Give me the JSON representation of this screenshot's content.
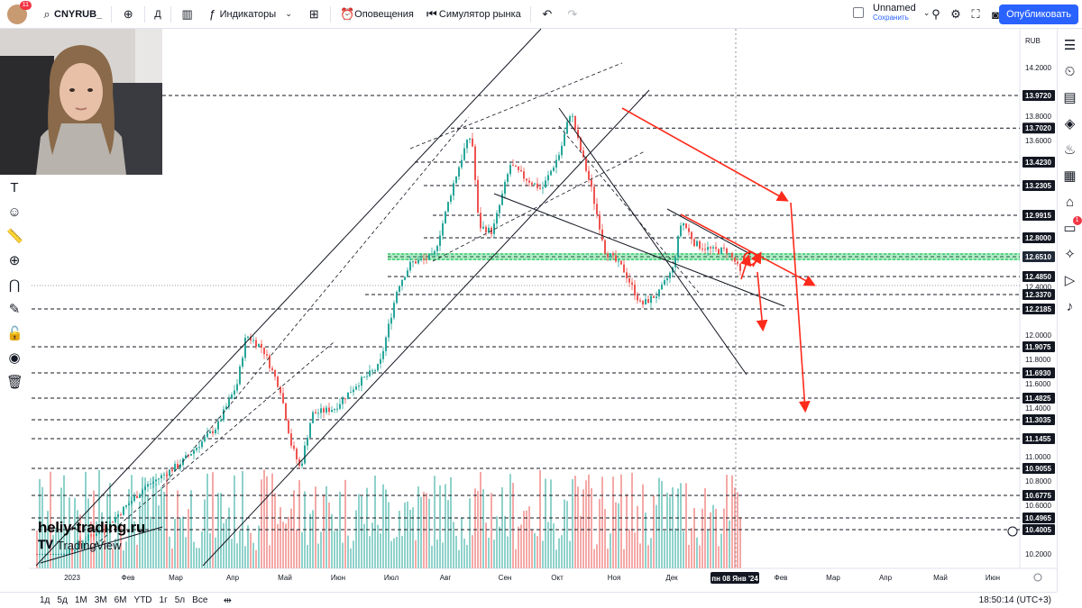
{
  "toolbar": {
    "symbol": "CNYRUB_",
    "interval": "Д",
    "indicators": "Индикаторы",
    "alerts": "Оповещения",
    "simulator": "Симулятор рынка",
    "save_title": "Unnamed",
    "save_status": "Сохранить",
    "publish": "Опубликовать",
    "avatar_badge": "11"
  },
  "price_axis": {
    "currency": "RUB",
    "ticks": [
      "14.2000",
      "13.8000",
      "13.6000",
      "12.4000",
      "12.0000",
      "11.8000",
      "11.6000",
      "11.4000",
      "11.0000",
      "10.8000",
      "10.6000",
      "10.2000"
    ],
    "tick_values": [
      14.2,
      13.8,
      13.6,
      12.4,
      12.0,
      11.8,
      11.6,
      11.4,
      11.0,
      10.8,
      10.6,
      10.2
    ],
    "level_tags": [
      "13.9720",
      "13.7020",
      "13.4230",
      "13.2305",
      "12.9915",
      "12.8000",
      "12.6510",
      "12.4850",
      "12.3370",
      "12.2185",
      "11.9075",
      "11.6930",
      "11.4825",
      "11.3035",
      "11.1455",
      "10.9055",
      "10.6775",
      "10.4965",
      "10.4005"
    ],
    "level_values": [
      13.972,
      13.702,
      13.423,
      13.2305,
      12.9915,
      12.8,
      12.651,
      12.485,
      12.337,
      12.2185,
      11.9075,
      11.693,
      11.4825,
      11.3035,
      11.1455,
      10.9055,
      10.6775,
      10.4965,
      10.4005
    ],
    "highlight": "12.6510"
  },
  "time_axis": {
    "labels": [
      "2023",
      "Фев",
      "Мар",
      "Апр",
      "Май",
      "Июн",
      "Июл",
      "Авг",
      "Сен",
      "Окт",
      "Ноя",
      "Дек",
      "Фев",
      "Мар",
      "Апр",
      "Май",
      "Июн"
    ],
    "cursor_label": "пн 08 Янв '24"
  },
  "bottombar": {
    "periods": [
      "1д",
      "5д",
      "1М",
      "3М",
      "6М",
      "YTD",
      "1г",
      "5л",
      "Все"
    ],
    "clock": "18:50:14 (UTC+3)"
  },
  "watermark": {
    "site": "heliy-trading.ru",
    "brand": "TradingView"
  },
  "colors": {
    "accent": "#2962ff",
    "up": "#26a69a",
    "down": "#ef5350",
    "arrow": "#ff2a1a",
    "zone": "#22c55e"
  }
}
